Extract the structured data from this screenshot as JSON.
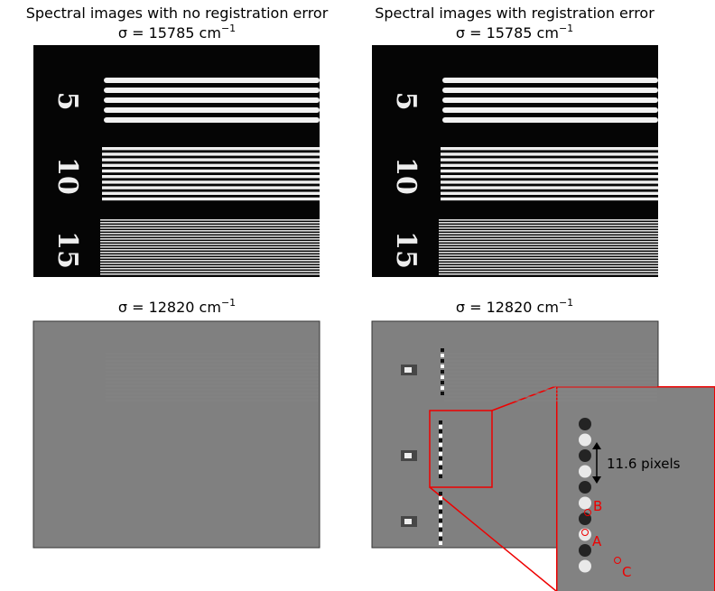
{
  "panels": [
    {
      "title": "Spectral images with no registration error",
      "sigma": "σ = 15785 cm",
      "exponent": "−1"
    },
    {
      "title": "Spectral images with registration error",
      "sigma": "σ = 15785 cm",
      "exponent": "−1"
    },
    {
      "sigma": "σ = 12820 cm",
      "exponent": "−1"
    },
    {
      "sigma": "σ = 12820 cm",
      "exponent": "−1"
    }
  ],
  "target_labels": [
    "5",
    "10",
    "15"
  ],
  "inset": {
    "spacing_label": "11.6 pixels",
    "points": [
      "A",
      "B",
      "C"
    ]
  }
}
